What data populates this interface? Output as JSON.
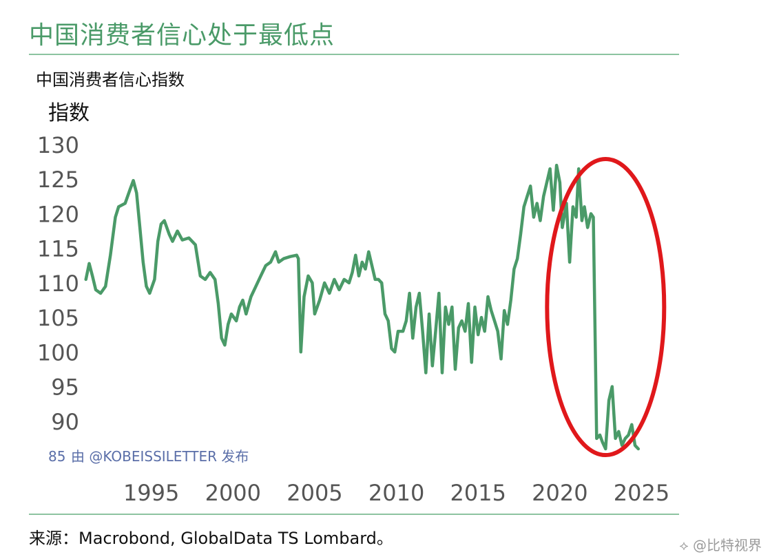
{
  "page": {
    "title": "中国消费者信心处于最低点",
    "source": "来源：Macrobond, GlobalData TS Lombard。",
    "watermark": "⟡ @比特视界"
  },
  "colors": {
    "title": "#4a9a68",
    "line": "#4a9a68",
    "circle": "#e0181b",
    "annotation": "#5a6ea8"
  },
  "chart_data": {
    "type": "line",
    "title": "中国消费者信心指数",
    "ylabel": "指数",
    "ylim": [
      85,
      130
    ],
    "xlim": [
      1990.8,
      2026.2
    ],
    "yticks": [
      130,
      125,
      120,
      115,
      110,
      105,
      100,
      95,
      90,
      85
    ],
    "xticks": [
      1995,
      2000,
      2005,
      2010,
      2015,
      2020,
      2025
    ],
    "annotation": "由 @KOBEISSILETTER 发布",
    "highlight": "red ellipse around 2020–2024 drop",
    "series": [
      {
        "points": [
          [
            1991.0,
            110.5
          ],
          [
            1991.2,
            112.8
          ],
          [
            1991.4,
            111.0
          ],
          [
            1991.6,
            109.0
          ],
          [
            1991.9,
            108.5
          ],
          [
            1992.2,
            109.5
          ],
          [
            1992.5,
            114.0
          ],
          [
            1992.8,
            119.5
          ],
          [
            1993.0,
            121.0
          ],
          [
            1993.4,
            121.5
          ],
          [
            1993.7,
            123.5
          ],
          [
            1993.9,
            124.8
          ],
          [
            1994.1,
            123.0
          ],
          [
            1994.3,
            118.0
          ],
          [
            1994.5,
            113.0
          ],
          [
            1994.7,
            109.5
          ],
          [
            1994.9,
            108.5
          ],
          [
            1995.2,
            110.5
          ],
          [
            1995.4,
            116.0
          ],
          [
            1995.6,
            118.5
          ],
          [
            1995.8,
            119.0
          ],
          [
            1996.1,
            117.0
          ],
          [
            1996.3,
            116.0
          ],
          [
            1996.6,
            117.5
          ],
          [
            1996.9,
            116.2
          ],
          [
            1997.3,
            116.5
          ],
          [
            1997.7,
            115.5
          ],
          [
            1998.0,
            111.0
          ],
          [
            1998.3,
            110.5
          ],
          [
            1998.6,
            111.5
          ],
          [
            1998.9,
            110.5
          ],
          [
            1999.1,
            107.0
          ],
          [
            1999.3,
            102.0
          ],
          [
            1999.5,
            101.0
          ],
          [
            1999.7,
            104.0
          ],
          [
            1999.9,
            105.5
          ],
          [
            2000.2,
            104.5
          ],
          [
            2000.4,
            106.5
          ],
          [
            2000.6,
            107.5
          ],
          [
            2000.8,
            105.5
          ],
          [
            2001.1,
            108.0
          ],
          [
            2001.4,
            109.5
          ],
          [
            2001.7,
            111.0
          ],
          [
            2002.0,
            112.5
          ],
          [
            2002.3,
            113.0
          ],
          [
            2002.6,
            114.5
          ],
          [
            2002.8,
            113.0
          ],
          [
            2003.1,
            113.5
          ],
          [
            2003.5,
            113.8
          ],
          [
            2003.9,
            114.0
          ],
          [
            2004.0,
            113.5
          ],
          [
            2004.15,
            100.0
          ],
          [
            2004.35,
            108.0
          ],
          [
            2004.6,
            111.0
          ],
          [
            2004.85,
            110.0
          ],
          [
            2005.0,
            105.5
          ],
          [
            2005.3,
            107.5
          ],
          [
            2005.6,
            110.0
          ],
          [
            2005.9,
            108.5
          ],
          [
            2006.2,
            110.5
          ],
          [
            2006.5,
            109.0
          ],
          [
            2006.8,
            110.5
          ],
          [
            2007.1,
            110.0
          ],
          [
            2007.3,
            111.5
          ],
          [
            2007.5,
            114.0
          ],
          [
            2007.7,
            111.0
          ],
          [
            2007.9,
            113.0
          ],
          [
            2008.1,
            112.0
          ],
          [
            2008.3,
            114.5
          ],
          [
            2008.5,
            112.5
          ],
          [
            2008.7,
            110.5
          ],
          [
            2008.9,
            110.5
          ],
          [
            2009.1,
            110.0
          ],
          [
            2009.3,
            105.5
          ],
          [
            2009.5,
            104.5
          ],
          [
            2009.7,
            100.5
          ],
          [
            2009.9,
            100.0
          ],
          [
            2010.1,
            103.0
          ],
          [
            2010.4,
            103.0
          ],
          [
            2010.6,
            104.5
          ],
          [
            2010.8,
            108.5
          ],
          [
            2011.0,
            102.0
          ],
          [
            2011.2,
            106.5
          ],
          [
            2011.4,
            108.5
          ],
          [
            2011.6,
            103.0
          ],
          [
            2011.8,
            97.0
          ],
          [
            2012.0,
            105.5
          ],
          [
            2012.2,
            98.0
          ],
          [
            2012.4,
            103.0
          ],
          [
            2012.6,
            108.5
          ],
          [
            2012.8,
            97.0
          ],
          [
            2013.0,
            106.5
          ],
          [
            2013.2,
            104.0
          ],
          [
            2013.4,
            106.5
          ],
          [
            2013.6,
            97.5
          ],
          [
            2013.8,
            103.5
          ],
          [
            2014.0,
            104.5
          ],
          [
            2014.2,
            103.0
          ],
          [
            2014.4,
            107.0
          ],
          [
            2014.6,
            98.5
          ],
          [
            2014.8,
            106.5
          ],
          [
            2015.0,
            102.5
          ],
          [
            2015.2,
            105.0
          ],
          [
            2015.4,
            103.0
          ],
          [
            2015.6,
            108.0
          ],
          [
            2015.8,
            106.0
          ],
          [
            2016.0,
            104.5
          ],
          [
            2016.2,
            103.0
          ],
          [
            2016.4,
            99.0
          ],
          [
            2016.6,
            106.0
          ],
          [
            2016.8,
            104.0
          ],
          [
            2017.0,
            107.5
          ],
          [
            2017.2,
            112.0
          ],
          [
            2017.4,
            113.5
          ],
          [
            2017.6,
            117.0
          ],
          [
            2017.8,
            121.0
          ],
          [
            2018.0,
            122.5
          ],
          [
            2018.2,
            124.0
          ],
          [
            2018.4,
            119.5
          ],
          [
            2018.6,
            121.5
          ],
          [
            2018.8,
            119.0
          ],
          [
            2019.0,
            122.5
          ],
          [
            2019.2,
            124.5
          ],
          [
            2019.4,
            126.5
          ],
          [
            2019.6,
            120.5
          ],
          [
            2019.8,
            127.0
          ],
          [
            2020.0,
            124.5
          ],
          [
            2020.15,
            118.0
          ],
          [
            2020.4,
            121.5
          ],
          [
            2020.6,
            113.0
          ],
          [
            2020.8,
            121.0
          ],
          [
            2021.0,
            119.5
          ],
          [
            2021.15,
            126.5
          ],
          [
            2021.35,
            119.0
          ],
          [
            2021.5,
            121.0
          ],
          [
            2021.7,
            118.0
          ],
          [
            2021.9,
            120.0
          ],
          [
            2022.05,
            119.5
          ],
          [
            2022.25,
            87.5
          ],
          [
            2022.45,
            88.0
          ],
          [
            2022.6,
            87.0
          ],
          [
            2022.8,
            86.0
          ],
          [
            2023.0,
            93.0
          ],
          [
            2023.2,
            95.0
          ],
          [
            2023.4,
            87.5
          ],
          [
            2023.6,
            88.5
          ],
          [
            2023.8,
            86.5
          ],
          [
            2024.0,
            87.5
          ],
          [
            2024.2,
            88.0
          ],
          [
            2024.4,
            89.5
          ],
          [
            2024.6,
            86.5
          ],
          [
            2024.8,
            86.0
          ]
        ]
      }
    ]
  }
}
